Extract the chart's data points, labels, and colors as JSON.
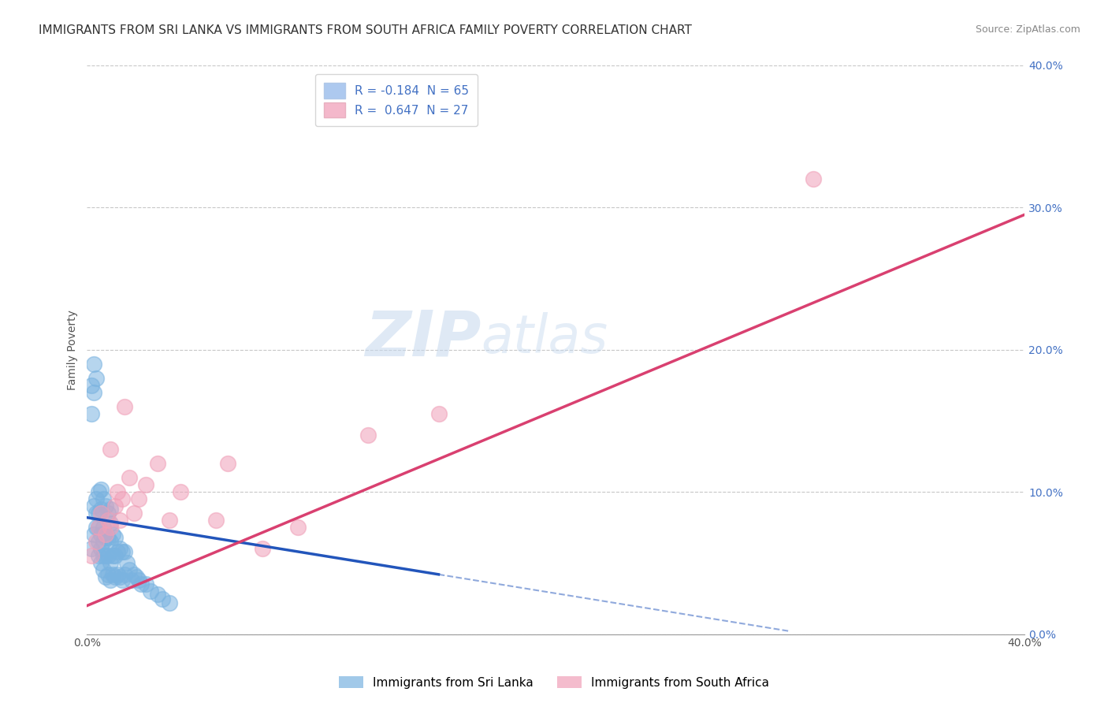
{
  "title": "IMMIGRANTS FROM SRI LANKA VS IMMIGRANTS FROM SOUTH AFRICA FAMILY POVERTY CORRELATION CHART",
  "source": "Source: ZipAtlas.com",
  "ylabel": "Family Poverty",
  "yticks": [
    "0.0%",
    "10.0%",
    "20.0%",
    "30.0%",
    "40.0%"
  ],
  "ytick_vals": [
    0.0,
    0.1,
    0.2,
    0.3,
    0.4
  ],
  "xlim": [
    0.0,
    0.4
  ],
  "ylim": [
    0.0,
    0.4
  ],
  "legend1_color": "#adc9ef",
  "legend2_color": "#f4b8cb",
  "legend1_label": "R = -0.184  N = 65",
  "legend2_label": "R =  0.647  N = 27",
  "series1_name": "Immigrants from Sri Lanka",
  "series2_name": "Immigrants from South Africa",
  "series1_color": "#7ab3e0",
  "series2_color": "#f0a0b8",
  "line1_color": "#2255bb",
  "line2_color": "#d94070",
  "watermark_zip": "ZIP",
  "watermark_atlas": "atlas",
  "background_color": "#ffffff",
  "grid_color": "#c8c8c8",
  "title_fontsize": 11,
  "label_fontsize": 10,
  "series1_x": [
    0.002,
    0.003,
    0.004,
    0.004,
    0.005,
    0.005,
    0.005,
    0.006,
    0.006,
    0.006,
    0.007,
    0.007,
    0.007,
    0.007,
    0.008,
    0.008,
    0.008,
    0.009,
    0.009,
    0.009,
    0.01,
    0.01,
    0.01,
    0.01,
    0.011,
    0.011,
    0.011,
    0.012,
    0.012,
    0.012,
    0.013,
    0.013,
    0.014,
    0.014,
    0.015,
    0.015,
    0.016,
    0.016,
    0.017,
    0.018,
    0.019,
    0.02,
    0.021,
    0.022,
    0.023,
    0.025,
    0.027,
    0.03,
    0.032,
    0.035,
    0.003,
    0.004,
    0.005,
    0.005,
    0.006,
    0.006,
    0.007,
    0.008,
    0.009,
    0.01,
    0.002,
    0.003,
    0.004,
    0.003,
    0.002
  ],
  "series1_y": [
    0.06,
    0.07,
    0.075,
    0.085,
    0.055,
    0.065,
    0.075,
    0.05,
    0.06,
    0.07,
    0.045,
    0.055,
    0.065,
    0.075,
    0.04,
    0.055,
    0.068,
    0.042,
    0.055,
    0.068,
    0.038,
    0.05,
    0.065,
    0.078,
    0.042,
    0.055,
    0.07,
    0.04,
    0.055,
    0.068,
    0.042,
    0.058,
    0.04,
    0.06,
    0.038,
    0.058,
    0.042,
    0.058,
    0.05,
    0.045,
    0.038,
    0.042,
    0.04,
    0.038,
    0.035,
    0.035,
    0.03,
    0.028,
    0.025,
    0.022,
    0.09,
    0.095,
    0.085,
    0.1,
    0.088,
    0.102,
    0.095,
    0.09,
    0.085,
    0.088,
    0.155,
    0.17,
    0.18,
    0.19,
    0.175
  ],
  "series2_x": [
    0.002,
    0.004,
    0.005,
    0.006,
    0.008,
    0.009,
    0.01,
    0.01,
    0.012,
    0.013,
    0.014,
    0.015,
    0.016,
    0.018,
    0.02,
    0.022,
    0.025,
    0.03,
    0.035,
    0.04,
    0.055,
    0.06,
    0.075,
    0.09,
    0.12,
    0.15,
    0.31
  ],
  "series2_y": [
    0.055,
    0.065,
    0.075,
    0.085,
    0.07,
    0.08,
    0.075,
    0.13,
    0.09,
    0.1,
    0.08,
    0.095,
    0.16,
    0.11,
    0.085,
    0.095,
    0.105,
    0.12,
    0.08,
    0.1,
    0.08,
    0.12,
    0.06,
    0.075,
    0.14,
    0.155,
    0.32
  ],
  "line1_x_start": 0.0,
  "line1_y_start": 0.082,
  "line1_x_end": 0.15,
  "line1_y_end": 0.042,
  "line1_dash_x_end": 0.3,
  "line1_dash_y_end": 0.002,
  "line2_x_start": 0.0,
  "line2_y_start": 0.02,
  "line2_x_end": 0.4,
  "line2_y_end": 0.295
}
